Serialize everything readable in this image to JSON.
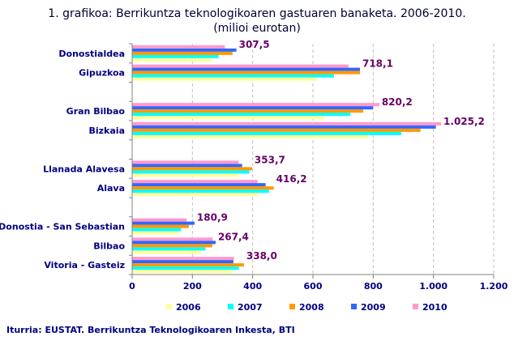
{
  "chart_data": {
    "type": "bar",
    "orientation": "horizontal",
    "title": "1. grafikoa: Berrikuntza teknologikoaren gastuaren banaketa. 2006-2010.",
    "subtitle": "(milioi eurotan)",
    "source": "Iturria: EUSTAT. Berrikuntza Teknologikoaren Inkesta, BTI",
    "categories": [
      "Donostialdea",
      "Gipuzkoa",
      "",
      "Gran Bilbao",
      "Bizkaia",
      "",
      "Llanada Alavesa",
      "Alava",
      "",
      "Donostia - San Sebastian",
      "Bilbao",
      "Vitoria - Gasteiz"
    ],
    "xlim": [
      0,
      1200
    ],
    "xticks": [
      0,
      200,
      400,
      600,
      800,
      1000,
      1200
    ],
    "xtick_labels": [
      "0",
      "200",
      "400",
      "600",
      "800",
      "1.000",
      "1.200"
    ],
    "grid": "vertical dashed",
    "legend_position": "bottom",
    "series": [
      {
        "name": "2006",
        "color": "#FFFF99",
        "values": [
          266,
          613,
          null,
          638,
          785,
          null,
          354,
          419,
          null,
          154,
          229,
          333
        ]
      },
      {
        "name": "2007",
        "color": "#00FFFF",
        "values": [
          287,
          670,
          null,
          724,
          893,
          null,
          389,
          454,
          null,
          162,
          243,
          354
        ]
      },
      {
        "name": "2008",
        "color": "#FF9900",
        "values": [
          333,
          756,
          null,
          767,
          957,
          null,
          398,
          470,
          null,
          188,
          266,
          371
        ]
      },
      {
        "name": "2009",
        "color": "#3366FF",
        "values": [
          346,
          756,
          null,
          799,
          1008,
          null,
          365,
          443,
          null,
          207,
          277,
          336
        ]
      },
      {
        "name": "2010",
        "color": "#FF99CC",
        "values": [
          307.5,
          718.1,
          null,
          820.2,
          1025.2,
          null,
          353.7,
          416.2,
          null,
          180.9,
          267.4,
          338.0
        ]
      }
    ],
    "data_labels": [
      "307,5",
      "718,1",
      "",
      "820,2",
      "1.025,2",
      "",
      "353,7",
      "416,2",
      "",
      "180,9",
      "267,4",
      "338,0"
    ]
  }
}
